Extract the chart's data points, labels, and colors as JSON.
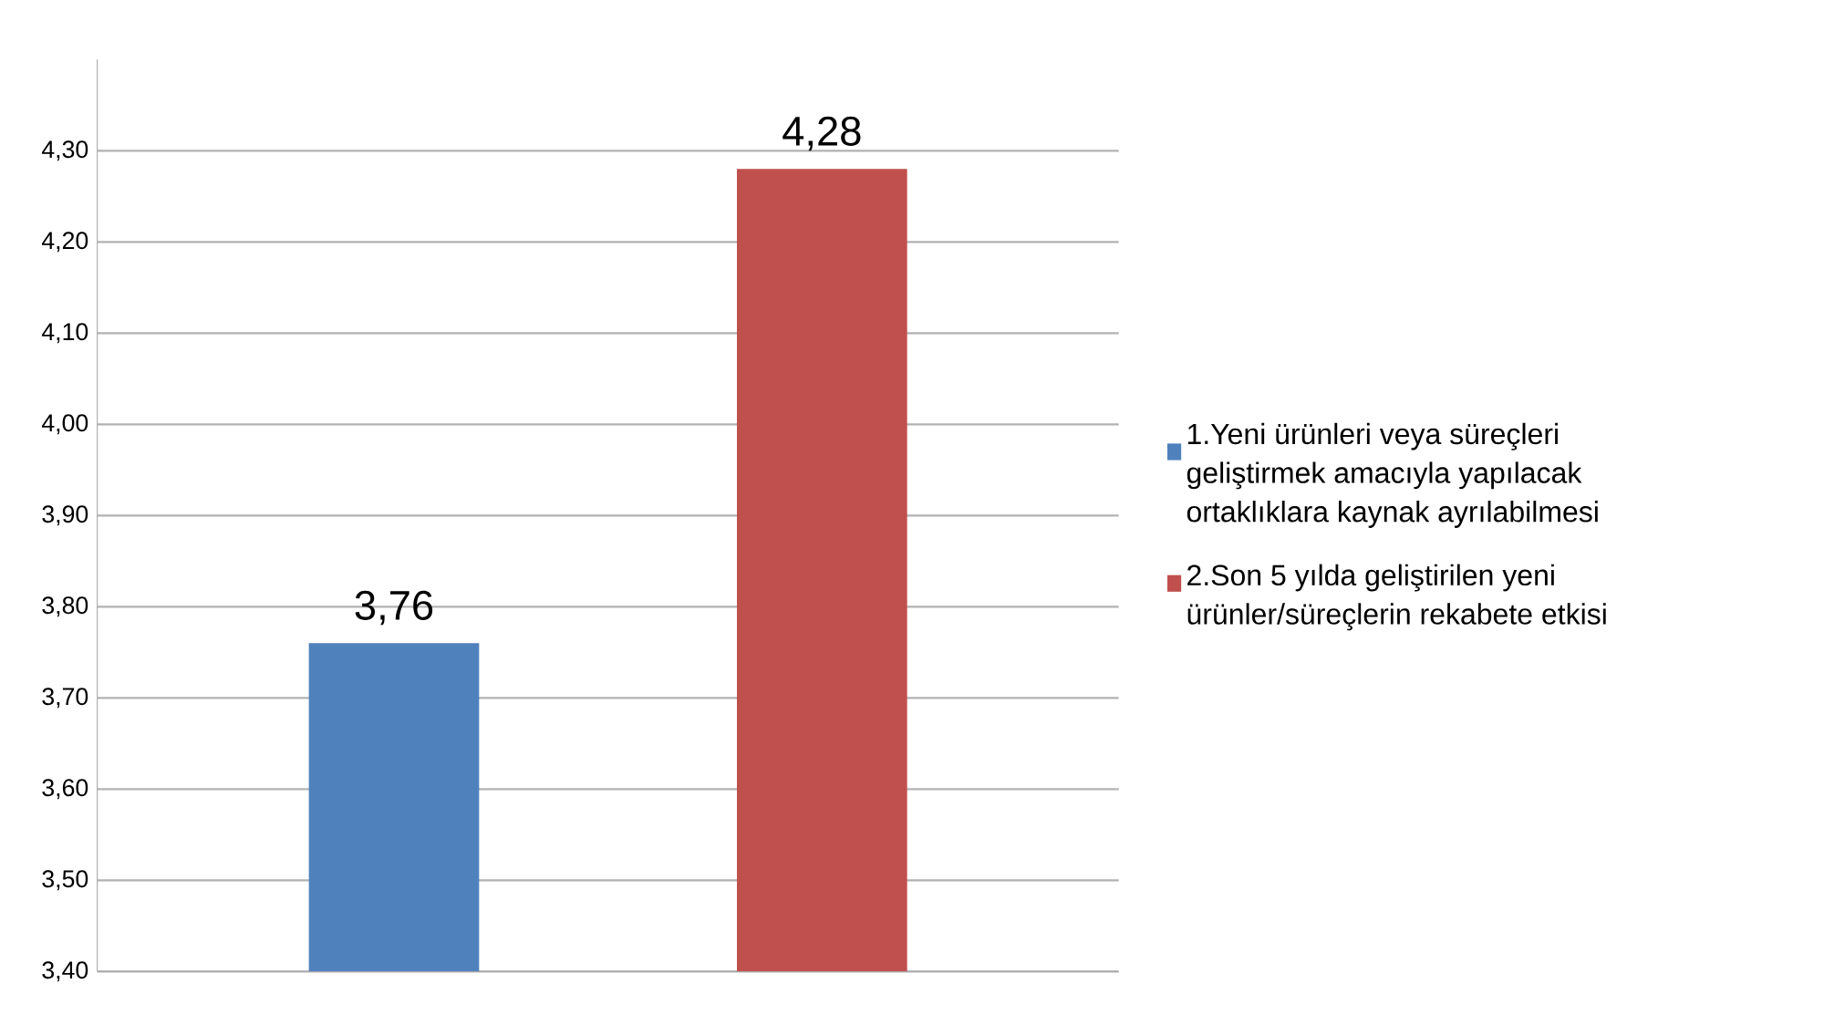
{
  "chart_data": {
    "type": "bar",
    "categories": [
      null
    ],
    "series": [
      {
        "name": "1.Yeni ürünleri veya süreçleri geliştirmek amacıyla yapılacak ortaklıklara kaynak ayrılabilmesi",
        "color": "#4f81bd",
        "values": [
          3.76
        ],
        "value_labels": [
          "3,76"
        ]
      },
      {
        "name": "2.Son 5 yılda geliştirilen yeni ürünler/süreçlerin rekabete etkisi",
        "color": "#c0504d",
        "values": [
          4.28
        ],
        "value_labels": [
          "4,28"
        ]
      }
    ],
    "ylim": [
      3.4,
      4.4
    ],
    "yticks": [
      {
        "value": 3.4,
        "label": "3,40"
      },
      {
        "value": 3.5,
        "label": "3,50"
      },
      {
        "value": 3.6,
        "label": "3,60"
      },
      {
        "value": 3.7,
        "label": "3,70"
      },
      {
        "value": 3.8,
        "label": "3,80"
      },
      {
        "value": 3.9,
        "label": "3,90"
      },
      {
        "value": 4.0,
        "label": "4,00"
      },
      {
        "value": 4.1,
        "label": "4,10"
      },
      {
        "value": 4.2,
        "label": "4,20"
      },
      {
        "value": 4.3,
        "label": "4,30"
      }
    ],
    "grid": "y",
    "legend": "right"
  }
}
